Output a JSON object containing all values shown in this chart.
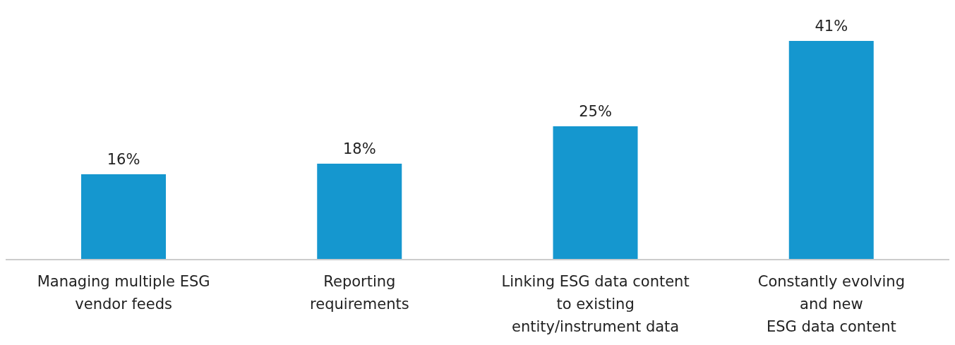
{
  "chart_data": {
    "type": "bar",
    "categories": [
      "Managing multiple ESG\nvendor feeds",
      "Reporting\nrequirements",
      "Linking ESG data content\nto existing\nentity/instrument data",
      "Constantly evolving\nand new\nESG data content"
    ],
    "values": [
      16,
      18,
      25,
      41
    ],
    "color": "#1597cf",
    "value_labels": [
      "16%",
      "18%",
      "25%",
      "41%"
    ],
    "grid": false,
    "legend": false
  }
}
